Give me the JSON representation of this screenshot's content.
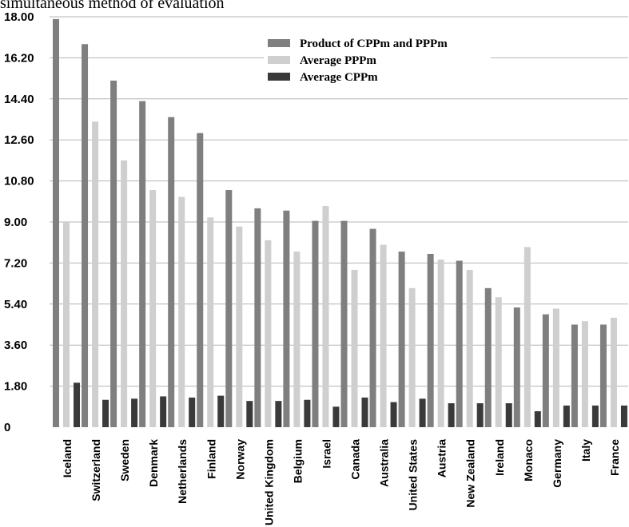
{
  "caption": "simultaneous method of evaluation",
  "chart_data": {
    "type": "bar",
    "title": "",
    "xlabel": "",
    "ylabel": "",
    "ylim": [
      0,
      18
    ],
    "y_ticks": [
      "0",
      "1.80",
      "3.60",
      "5.40",
      "7.20",
      "9.00",
      "10.80",
      "12.60",
      "14.40",
      "16.20",
      "18.00"
    ],
    "grid": true,
    "legend_position": "top-right",
    "categories": [
      "Iceland",
      "Switzerland",
      "Sweden",
      "Denmark",
      "Netherlands",
      "Finland",
      "Norway",
      "United Kingdom",
      "Belgium",
      "Israel",
      "Canada",
      "Australia",
      "United States",
      "Austria",
      "New Zealand",
      "Ireland",
      "Monaco",
      "Germany",
      "Italy",
      "France"
    ],
    "series": [
      {
        "name": "Product of CPPm and PPPm",
        "color": "#7f7f7f",
        "values": [
          17.9,
          16.8,
          15.2,
          14.3,
          13.6,
          12.9,
          10.4,
          9.6,
          9.5,
          9.05,
          9.05,
          8.7,
          7.7,
          7.6,
          7.3,
          6.1,
          5.25,
          4.95,
          4.5,
          4.5
        ]
      },
      {
        "name": "Average PPPm",
        "color": "#cfcfcf",
        "values": [
          9.0,
          13.4,
          11.7,
          10.4,
          10.1,
          9.2,
          8.8,
          8.2,
          7.7,
          9.7,
          6.9,
          8.0,
          6.1,
          7.35,
          6.9,
          5.7,
          7.9,
          5.2,
          4.65,
          4.8
        ]
      },
      {
        "name": "Average CPPm",
        "color": "#3a3a3a",
        "values": [
          1.95,
          1.2,
          1.25,
          1.35,
          1.3,
          1.38,
          1.15,
          1.15,
          1.2,
          0.9,
          1.3,
          1.1,
          1.25,
          1.05,
          1.05,
          1.05,
          0.7,
          0.95,
          0.95,
          0.95
        ]
      }
    ]
  }
}
